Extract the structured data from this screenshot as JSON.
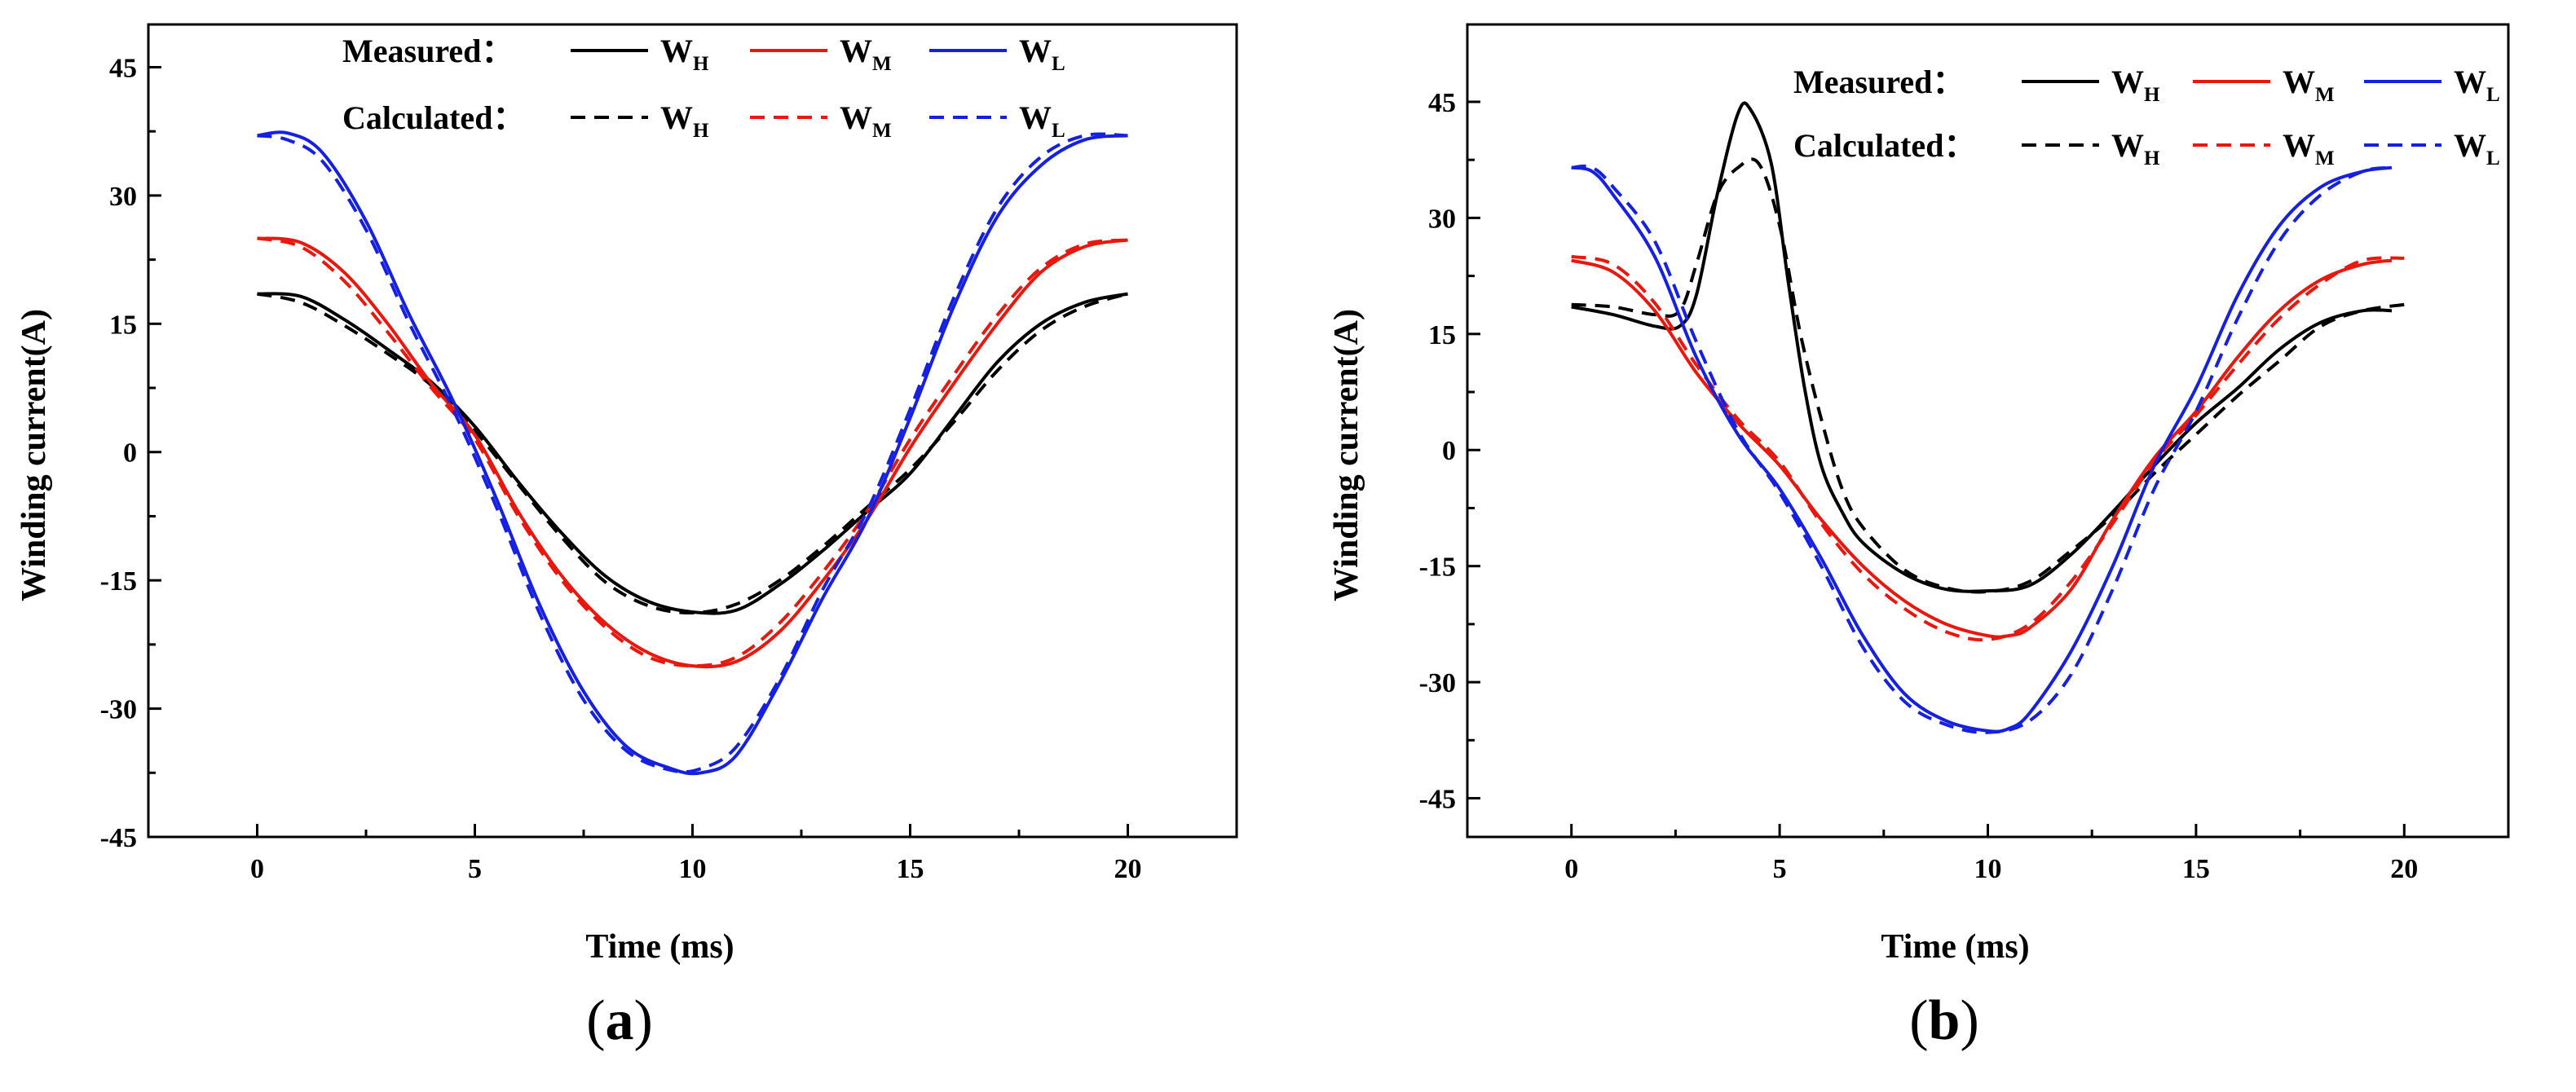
{
  "chart_data": [
    {
      "type": "line",
      "panel_label": "a",
      "xlabel": "Time (ms)",
      "ylabel": "Winding current(A)",
      "xlim": [
        -2.5,
        22.5
      ],
      "ylim": [
        -45,
        50
      ],
      "xticks": [
        0,
        5,
        10,
        15,
        20
      ],
      "yticks": [
        45,
        30,
        15,
        0,
        -15,
        -30,
        -45
      ],
      "legend": {
        "measured_label": "Measured",
        "calculated_label": "Calculated",
        "separator": "：",
        "entries": [
          {
            "main": "W",
            "sub": "H",
            "color": "#000000"
          },
          {
            "main": "W",
            "sub": "M",
            "color": "#e8180f"
          },
          {
            "main": "W",
            "sub": "L",
            "color": "#1620e0"
          }
        ]
      },
      "series": [
        {
          "name": "Measured WH",
          "color": "#000000",
          "dash": false,
          "x": [
            0,
            1,
            2,
            3,
            4,
            5,
            6,
            7,
            8,
            9,
            10,
            11,
            12,
            13,
            14,
            15,
            16,
            17,
            18,
            19,
            20
          ],
          "y": [
            18.5,
            18.2,
            15.5,
            12,
            8.2,
            3,
            -3.5,
            -9.5,
            -14.5,
            -17.5,
            -18.7,
            -18.5,
            -15.5,
            -11.5,
            -7,
            -2.5,
            4,
            10.5,
            15,
            17.5,
            18.5
          ]
        },
        {
          "name": "Calculated WH",
          "color": "#000000",
          "dash": true,
          "x": [
            0,
            1,
            2,
            3,
            4,
            5,
            6,
            7,
            8,
            9,
            10,
            11,
            12,
            13,
            14,
            15,
            16,
            17,
            18,
            19,
            20
          ],
          "y": [
            18.5,
            17.5,
            14.8,
            11.5,
            7.8,
            2.5,
            -3.8,
            -10,
            -15.2,
            -18,
            -18.8,
            -17.8,
            -15,
            -11,
            -6.5,
            -2,
            3.5,
            9.5,
            14.2,
            17,
            18.5
          ]
        },
        {
          "name": "Measured WM",
          "color": "#e8180f",
          "dash": false,
          "x": [
            0,
            1,
            2,
            3,
            4,
            5,
            6,
            7,
            8,
            9,
            10,
            11,
            12,
            13,
            14,
            15,
            16,
            17,
            18,
            19,
            20
          ],
          "y": [
            25,
            24.5,
            21,
            15,
            8,
            2,
            -7,
            -14.5,
            -20,
            -23.5,
            -25,
            -24.5,
            -21,
            -15,
            -8,
            0.5,
            8,
            15,
            21,
            24,
            24.8
          ]
        },
        {
          "name": "Calculated WM",
          "color": "#e8180f",
          "dash": true,
          "x": [
            0,
            1,
            2,
            3,
            4,
            5,
            6,
            7,
            8,
            9,
            10,
            11,
            12,
            13,
            14,
            15,
            16,
            17,
            18,
            19,
            20
          ],
          "y": [
            25,
            24,
            20,
            14,
            7.5,
            1.5,
            -7.5,
            -15,
            -20.5,
            -24,
            -25,
            -24,
            -20,
            -14,
            -7,
            1.5,
            9,
            16,
            21.5,
            24.3,
            24.8
          ]
        },
        {
          "name": "Measured WL",
          "color": "#1620e0",
          "dash": false,
          "x": [
            0,
            0.7,
            1.5,
            2.5,
            3.5,
            4.5,
            5.5,
            6.5,
            7.5,
            8.5,
            9.5,
            10.2,
            11,
            12,
            13,
            14,
            15,
            16,
            17,
            18,
            19,
            20
          ],
          "y": [
            37,
            37.3,
            35,
            27,
            16,
            6,
            -5.5,
            -18,
            -28,
            -34.5,
            -37,
            -37.5,
            -35.5,
            -27,
            -17,
            -8,
            4,
            17,
            27.5,
            33.5,
            36.5,
            37
          ]
        },
        {
          "name": "Calculated WL",
          "color": "#1620e0",
          "dash": true,
          "x": [
            0,
            0.7,
            1.5,
            2.5,
            3.5,
            4.5,
            5.5,
            6.5,
            7.5,
            8.5,
            9.5,
            10.2,
            11,
            12,
            13,
            14,
            15,
            16,
            17,
            18,
            19,
            20
          ],
          "y": [
            37,
            36.5,
            34,
            26,
            15,
            5,
            -6.5,
            -19,
            -29,
            -35,
            -37.2,
            -37,
            -34.5,
            -26.5,
            -16,
            -7,
            5,
            18,
            28.5,
            34.5,
            37,
            37
          ]
        }
      ]
    },
    {
      "type": "line",
      "panel_label": "b",
      "xlabel": "Time (ms)",
      "ylabel": "Winding current(A)",
      "xlim": [
        -2.5,
        22.5
      ],
      "ylim": [
        -50,
        55
      ],
      "xticks": [
        0,
        5,
        10,
        15,
        20
      ],
      "yticks": [
        45,
        30,
        15,
        0,
        -15,
        -30,
        -45
      ],
      "legend": {
        "measured_label": "Measured",
        "calculated_label": "Calculated",
        "separator": "：",
        "entries": [
          {
            "main": "W",
            "sub": "H",
            "color": "#000000"
          },
          {
            "main": "W",
            "sub": "M",
            "color": "#e8180f"
          },
          {
            "main": "W",
            "sub": "L",
            "color": "#1620e0"
          }
        ]
      },
      "series": [
        {
          "name": "Measured WH",
          "color": "#000000",
          "dash": false,
          "x": [
            0,
            1,
            2,
            2.6,
            3,
            3.5,
            4,
            4.3,
            4.8,
            5.2,
            5.6,
            6,
            6.5,
            7,
            8,
            9,
            10,
            11,
            12,
            13,
            14,
            15,
            16,
            17,
            18,
            19,
            19.7
          ],
          "y": [
            18.5,
            17.5,
            16,
            16,
            20,
            33,
            43.5,
            44,
            37,
            22,
            8,
            -2,
            -8,
            -12,
            -16,
            -18,
            -18.2,
            -17.5,
            -13.5,
            -8,
            -2,
            3.5,
            8,
            13,
            16.5,
            18,
            18
          ]
        },
        {
          "name": "Calculated WH",
          "color": "#000000",
          "dash": true,
          "x": [
            0,
            1,
            2,
            2.6,
            3,
            3.5,
            4,
            4.5,
            5,
            5.5,
            6,
            6.5,
            7,
            8,
            9,
            10,
            11,
            12,
            13,
            14,
            15,
            16,
            17,
            18,
            19,
            20
          ],
          "y": [
            18.8,
            18.5,
            17.5,
            18,
            24,
            33,
            36.5,
            37,
            29,
            15,
            4,
            -5,
            -10,
            -15.5,
            -17.8,
            -18.3,
            -17,
            -13,
            -8.5,
            -3,
            2,
            7,
            11.5,
            16,
            18,
            18.8
          ]
        },
        {
          "name": "Measured WM",
          "color": "#e8180f",
          "dash": false,
          "x": [
            0,
            1,
            2,
            3,
            4,
            5,
            6,
            7,
            8,
            9,
            10,
            10.5,
            11,
            12,
            13,
            14,
            15,
            16,
            17,
            18,
            19,
            19.7
          ],
          "y": [
            24.5,
            23,
            18,
            10,
            3.5,
            -2,
            -9,
            -15,
            -19.5,
            -22.5,
            -24,
            -24,
            -23,
            -18,
            -9,
            -1,
            5,
            12,
            18,
            22,
            24,
            24.5
          ]
        },
        {
          "name": "Calculated WM",
          "color": "#e8180f",
          "dash": true,
          "x": [
            0,
            1,
            2,
            3,
            4,
            5,
            6,
            7,
            8,
            9,
            10,
            11,
            12,
            13,
            14,
            15,
            16,
            17,
            18,
            19,
            20
          ],
          "y": [
            25,
            24,
            19,
            11,
            4,
            -1.5,
            -9.5,
            -16,
            -20.5,
            -23.5,
            -24.5,
            -22.5,
            -17,
            -9.5,
            -1.5,
            4.5,
            11,
            17,
            21.5,
            24.5,
            24.8
          ]
        },
        {
          "name": "Measured WL",
          "color": "#1620e0",
          "dash": false,
          "x": [
            0,
            0.5,
            1,
            2,
            3,
            4,
            5,
            6,
            7,
            8,
            9,
            10,
            10.5,
            11,
            12,
            13,
            14,
            15,
            16,
            17,
            18,
            19,
            19.7
          ],
          "y": [
            36.5,
            36,
            33,
            25,
            12,
            2,
            -5,
            -14,
            -24,
            -31.5,
            -35,
            -36.3,
            -36,
            -34,
            -26,
            -15,
            -2,
            8,
            20,
            29,
            34,
            36,
            36.5
          ]
        },
        {
          "name": "Calculated WL",
          "color": "#1620e0",
          "dash": true,
          "x": [
            0,
            0.5,
            1,
            2,
            3,
            4,
            5,
            6,
            7,
            8,
            9,
            10,
            11,
            12,
            13,
            14,
            15,
            16,
            17,
            18,
            19,
            19.7
          ],
          "y": [
            36.5,
            36.5,
            34,
            27,
            14,
            2.5,
            -5.5,
            -15,
            -25.5,
            -32.5,
            -35.5,
            -36.5,
            -35,
            -29,
            -18,
            -5,
            5,
            17,
            27,
            33,
            36,
            36.5
          ]
        }
      ]
    }
  ]
}
